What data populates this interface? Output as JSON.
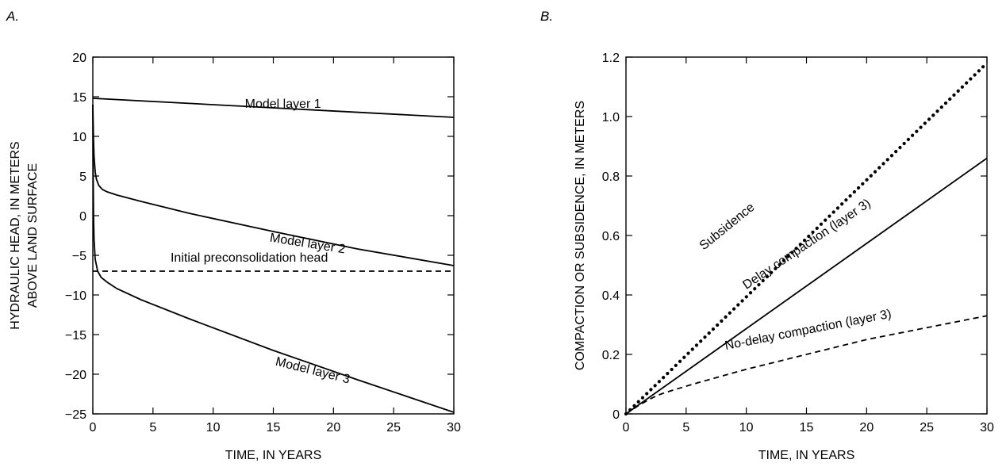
{
  "chart_data": [
    {
      "panel_label": "A.",
      "type": "line",
      "xlabel": "TIME, IN YEARS",
      "ylabel_lines": [
        "HYDRAULIC HEAD, IN METERS",
        "ABOVE LAND SURFACE"
      ],
      "xlim": [
        0,
        30
      ],
      "ylim": [
        -25,
        20
      ],
      "xticks": [
        0,
        5,
        10,
        15,
        20,
        25,
        30
      ],
      "yticks": [
        -25,
        -20,
        -15,
        -10,
        -5,
        0,
        5,
        10,
        15,
        20
      ],
      "ytick_labels": [
        "−25",
        "−20",
        "−15",
        "−10",
        "−5",
        "0",
        "5",
        "10",
        "15",
        "20"
      ],
      "grid": false,
      "series": [
        {
          "name": "Model layer 1",
          "style": "solid",
          "x": [
            0,
            30
          ],
          "y": [
            14.8,
            12.4
          ]
        },
        {
          "name": "Model layer 2",
          "style": "solid",
          "x": [
            0,
            0.05,
            0.1,
            0.2,
            0.3,
            0.5,
            0.8,
            1.2,
            2,
            4,
            8,
            15,
            22,
            30
          ],
          "y": [
            14,
            10,
            7.5,
            5.5,
            4.6,
            3.8,
            3.3,
            3.0,
            2.6,
            1.8,
            0.3,
            -2.0,
            -4.2,
            -6.3
          ]
        },
        {
          "name": "Model layer 3",
          "style": "solid",
          "x": [
            0,
            0.03,
            0.06,
            0.1,
            0.2,
            0.4,
            0.7,
            1.2,
            2,
            4,
            8,
            15,
            22,
            30
          ],
          "y": [
            14,
            5,
            0,
            -3,
            -5.5,
            -7,
            -7.8,
            -8.4,
            -9.2,
            -10.6,
            -13,
            -17,
            -20.7,
            -24.8
          ]
        },
        {
          "name": "Initial preconsolidation head",
          "style": "dashed",
          "x": [
            0,
            30
          ],
          "y": [
            -7,
            -7
          ]
        }
      ],
      "annotations": [
        {
          "text": "Model layer 1",
          "x": 15.8,
          "y": 13.6,
          "angle": 0
        },
        {
          "text": "Model layer 2",
          "x": 17.8,
          "y": -4.0,
          "angle": 9
        },
        {
          "text": "Initial preconsolidation head",
          "x": 13.0,
          "y": -5.8,
          "angle": 0
        },
        {
          "text": "Model layer 3",
          "x": 18.2,
          "y": -20.0,
          "angle": 14
        }
      ]
    },
    {
      "panel_label": "B.",
      "type": "line",
      "xlabel": "TIME, IN YEARS",
      "ylabel_lines": [
        "COMPACTION OR SUBSIDENCE, IN METERS"
      ],
      "xlim": [
        0,
        30
      ],
      "ylim": [
        0,
        1.2
      ],
      "xticks": [
        0,
        5,
        10,
        15,
        20,
        25,
        30
      ],
      "yticks": [
        0,
        0.2,
        0.4,
        0.6,
        0.8,
        1.0,
        1.2
      ],
      "ytick_labels": [
        "0",
        "0.2",
        "0.4",
        "0.6",
        "0.8",
        "1.0",
        "1.2"
      ],
      "grid": false,
      "series": [
        {
          "name": "Subsidence",
          "style": "dotted",
          "x": [
            0,
            30
          ],
          "y": [
            0,
            1.18
          ]
        },
        {
          "name": "Delay compaction (layer 3)",
          "style": "solid",
          "x": [
            0,
            30
          ],
          "y": [
            0,
            0.86
          ]
        },
        {
          "name": "No-delay compaction (layer 3)",
          "style": "dashed",
          "x": [
            0,
            1,
            2,
            2.5,
            3,
            4,
            6,
            10,
            15,
            20,
            25,
            30
          ],
          "y": [
            0,
            0.027,
            0.05,
            0.06,
            0.068,
            0.081,
            0.105,
            0.15,
            0.2,
            0.25,
            0.29,
            0.33
          ]
        }
      ],
      "annotations": [
        {
          "text": "Subsidence",
          "x": 8.6,
          "y": 0.62,
          "angle": -39
        },
        {
          "text": "Delay compaction (layer 3)",
          "x": 15.2,
          "y": 0.56,
          "angle": -34
        },
        {
          "text": "No-delay compaction (layer 3)",
          "x": 15.2,
          "y": 0.27,
          "angle": -11
        }
      ]
    }
  ]
}
